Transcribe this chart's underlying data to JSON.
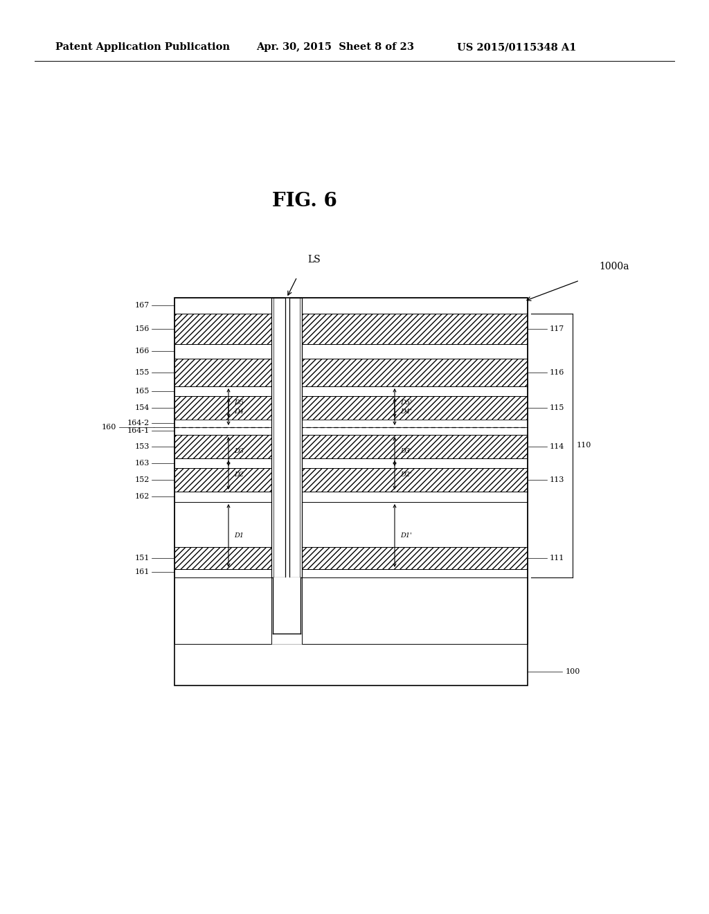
{
  "title": "FIG. 6",
  "header_left": "Patent Application Publication",
  "header_mid": "Apr. 30, 2015  Sheet 8 of 23",
  "header_right": "US 2015/0115348 A1",
  "bg_color": "#ffffff"
}
